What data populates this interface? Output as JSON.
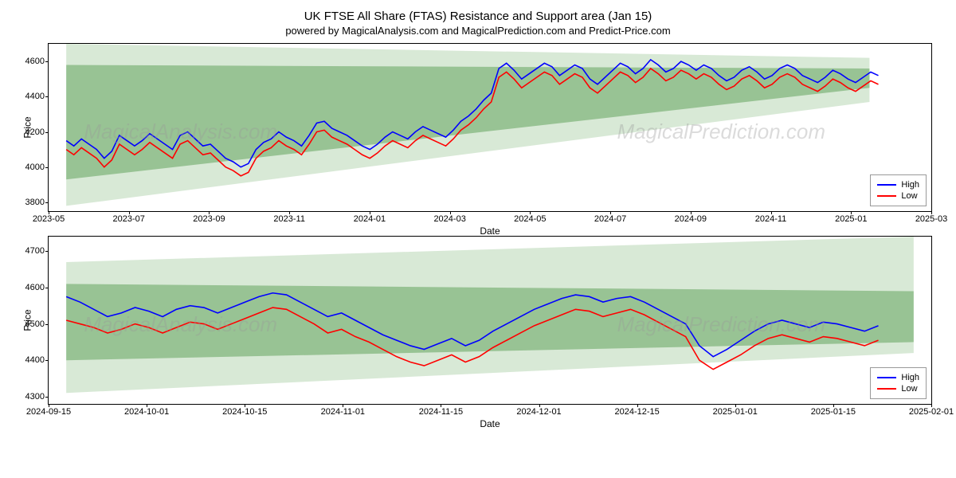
{
  "title": "UK FTSE All Share (FTAS) Resistance and Support area (Jan 15)",
  "subtitle": "powered by MagicalAnalysis.com and MagicalPrediction.com and Predict-Price.com",
  "watermark_left": "MagicalAnalysis.com",
  "watermark_right": "MagicalPrediction.com",
  "legend_high": "High",
  "legend_low": "Low",
  "xlabel": "Date",
  "ylabel": "Price",
  "colors": {
    "high_line": "#0000ff",
    "low_line": "#ff0000",
    "band_dark": "#83b57d",
    "band_light": "#c8e0c4",
    "background": "#ffffff",
    "border": "#000000",
    "text": "#000000",
    "watermark": "#999999"
  },
  "chart_top": {
    "type": "line",
    "ylim": [
      3750,
      4700
    ],
    "yticks": [
      3800,
      4000,
      4200,
      4400,
      4600
    ],
    "xticks": [
      "2023-05",
      "2023-07",
      "2023-09",
      "2023-11",
      "2024-01",
      "2024-03",
      "2024-05",
      "2024-07",
      "2024-09",
      "2024-11",
      "2025-01",
      "2025-03"
    ],
    "band_outer": {
      "x": [
        0.02,
        0.93,
        0.93,
        0.02
      ],
      "y": [
        4700,
        4620,
        4370,
        3780
      ]
    },
    "band_inner": {
      "x": [
        0.02,
        0.93,
        0.93,
        0.02
      ],
      "y": [
        4580,
        4560,
        4450,
        3930
      ]
    },
    "high": [
      4150,
      4120,
      4160,
      4130,
      4100,
      4050,
      4090,
      4180,
      4150,
      4120,
      4150,
      4190,
      4160,
      4130,
      4100,
      4180,
      4200,
      4160,
      4120,
      4130,
      4090,
      4050,
      4030,
      4000,
      4020,
      4100,
      4140,
      4160,
      4200,
      4170,
      4150,
      4120,
      4180,
      4250,
      4260,
      4220,
      4200,
      4180,
      4150,
      4120,
      4100,
      4130,
      4170,
      4200,
      4180,
      4160,
      4200,
      4230,
      4210,
      4190,
      4170,
      4210,
      4260,
      4290,
      4330,
      4380,
      4420,
      4560,
      4590,
      4550,
      4500,
      4530,
      4560,
      4590,
      4570,
      4520,
      4550,
      4580,
      4560,
      4500,
      4470,
      4510,
      4550,
      4590,
      4570,
      4530,
      4560,
      4610,
      4580,
      4540,
      4560,
      4600,
      4580,
      4550,
      4580,
      4560,
      4520,
      4490,
      4510,
      4550,
      4570,
      4540,
      4500,
      4520,
      4560,
      4580,
      4560,
      4520,
      4500,
      4480,
      4510,
      4550,
      4530,
      4500,
      4480,
      4510,
      4540,
      4520
    ],
    "low": [
      4100,
      4070,
      4110,
      4080,
      4050,
      4000,
      4040,
      4130,
      4100,
      4070,
      4100,
      4140,
      4110,
      4080,
      4050,
      4130,
      4150,
      4110,
      4070,
      4080,
      4040,
      4000,
      3980,
      3950,
      3970,
      4050,
      4090,
      4110,
      4150,
      4120,
      4100,
      4070,
      4130,
      4200,
      4210,
      4170,
      4150,
      4130,
      4100,
      4070,
      4050,
      4080,
      4120,
      4150,
      4130,
      4110,
      4150,
      4180,
      4160,
      4140,
      4120,
      4160,
      4210,
      4240,
      4280,
      4330,
      4370,
      4510,
      4540,
      4500,
      4450,
      4480,
      4510,
      4540,
      4520,
      4470,
      4500,
      4530,
      4510,
      4450,
      4420,
      4460,
      4500,
      4540,
      4520,
      4480,
      4510,
      4560,
      4530,
      4490,
      4510,
      4550,
      4530,
      4500,
      4530,
      4510,
      4470,
      4440,
      4460,
      4500,
      4520,
      4490,
      4450,
      4470,
      4510,
      4530,
      4510,
      4470,
      4450,
      4430,
      4460,
      4500,
      4480,
      4450,
      4430,
      4460,
      4490,
      4470
    ],
    "line_width": 1.6,
    "title_fontsize": 15,
    "tick_fontsize": 11
  },
  "chart_bottom": {
    "type": "line",
    "ylim": [
      4280,
      4740
    ],
    "yticks": [
      4300,
      4400,
      4500,
      4600,
      4700
    ],
    "xticks": [
      "2024-09-15",
      "2024-10-01",
      "2024-10-15",
      "2024-11-01",
      "2024-11-15",
      "2024-12-01",
      "2024-12-15",
      "2025-01-01",
      "2025-01-15",
      "2025-02-01"
    ],
    "band_outer": {
      "x": [
        0.02,
        0.98,
        0.98,
        0.02
      ],
      "y": [
        4670,
        4740,
        4420,
        4310
      ]
    },
    "band_inner": {
      "x": [
        0.02,
        0.98,
        0.98,
        0.02
      ],
      "y": [
        4610,
        4590,
        4450,
        4400
      ]
    },
    "high": [
      4575,
      4560,
      4540,
      4520,
      4530,
      4545,
      4535,
      4520,
      4540,
      4550,
      4545,
      4530,
      4545,
      4560,
      4575,
      4585,
      4580,
      4560,
      4540,
      4520,
      4530,
      4510,
      4490,
      4470,
      4455,
      4440,
      4430,
      4445,
      4460,
      4440,
      4455,
      4480,
      4500,
      4520,
      4540,
      4555,
      4570,
      4580,
      4575,
      4560,
      4570,
      4575,
      4560,
      4540,
      4520,
      4500,
      4440,
      4410,
      4430,
      4455,
      4480,
      4500,
      4510,
      4500,
      4490,
      4505,
      4500,
      4490,
      4480,
      4495
    ],
    "low": [
      4510,
      4500,
      4490,
      4475,
      4485,
      4500,
      4490,
      4475,
      4490,
      4505,
      4500,
      4485,
      4500,
      4515,
      4530,
      4545,
      4540,
      4520,
      4500,
      4475,
      4485,
      4465,
      4450,
      4430,
      4410,
      4395,
      4385,
      4400,
      4415,
      4395,
      4410,
      4435,
      4455,
      4475,
      4495,
      4510,
      4525,
      4540,
      4535,
      4520,
      4530,
      4540,
      4525,
      4505,
      4485,
      4465,
      4400,
      4375,
      4395,
      4415,
      4440,
      4460,
      4470,
      4460,
      4450,
      4465,
      4460,
      4450,
      4440,
      4455
    ],
    "line_width": 1.6,
    "tick_fontsize": 11
  }
}
